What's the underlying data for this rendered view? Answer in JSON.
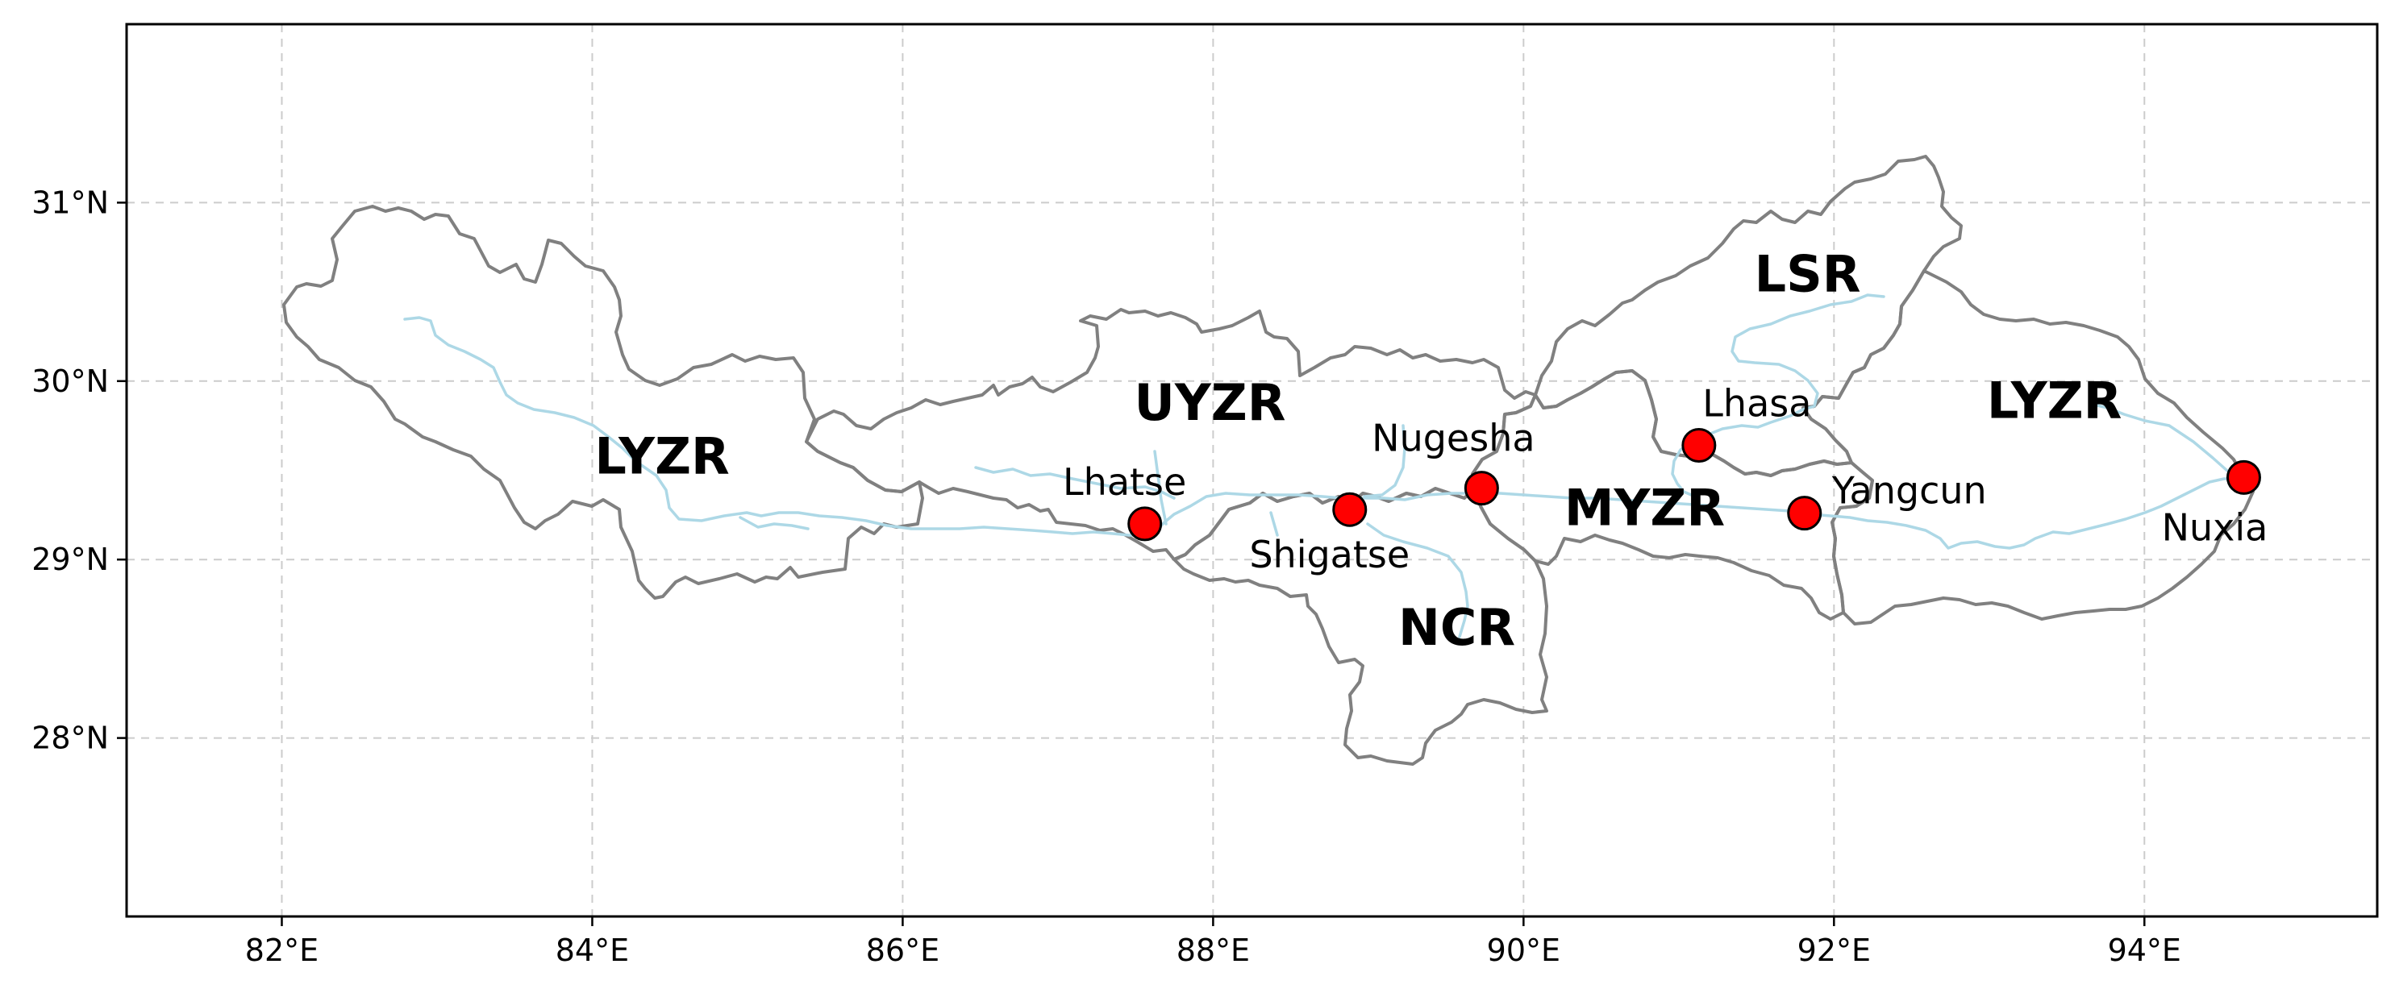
{
  "map": {
    "x_range": [
      81,
      95.5
    ],
    "y_range": [
      27,
      32
    ],
    "x_ticks": [
      {
        "value": 82,
        "label": "82°E"
      },
      {
        "value": 84,
        "label": "84°E"
      },
      {
        "value": 86,
        "label": "86°E"
      },
      {
        "value": 88,
        "label": "88°E"
      },
      {
        "value": 90,
        "label": "90°E"
      },
      {
        "value": 92,
        "label": "92°E"
      },
      {
        "value": 94,
        "label": "94°E"
      }
    ],
    "y_ticks": [
      {
        "value": 28,
        "label": "28°N"
      },
      {
        "value": 29,
        "label": "29°N"
      },
      {
        "value": 30,
        "label": "30°N"
      },
      {
        "value": 31,
        "label": "31°N"
      }
    ],
    "grid": true,
    "colors": {
      "boundary": "#808080",
      "river": "#add8e6",
      "station_fill": "#ff0000",
      "station_edge": "#000000",
      "grid": "#cccccc"
    }
  },
  "regions": [
    {
      "label": "LYZR",
      "lon": 84.45,
      "lat": 29.56
    },
    {
      "label": "UYZR",
      "lon": 87.98,
      "lat": 29.86
    },
    {
      "label": "LSR",
      "lon": 91.83,
      "lat": 30.58
    },
    {
      "label": "LYZR",
      "lon": 93.42,
      "lat": 29.87
    },
    {
      "label": "MYZR",
      "lon": 90.78,
      "lat": 29.27
    },
    {
      "label": "NCR",
      "lon": 89.57,
      "lat": 28.6
    }
  ],
  "stations": [
    {
      "name": "Lhatse",
      "lon": 87.56,
      "lat": 29.2
    },
    {
      "name": "Shigatse",
      "lon": 88.88,
      "lat": 29.28
    },
    {
      "name": "Nugesha",
      "lon": 89.73,
      "lat": 29.4
    },
    {
      "name": "Lhasa",
      "lon": 91.13,
      "lat": 29.64
    },
    {
      "name": "Yangcun",
      "lon": 91.81,
      "lat": 29.26
    },
    {
      "name": "Nuxia",
      "lon": 94.64,
      "lat": 29.46
    }
  ]
}
